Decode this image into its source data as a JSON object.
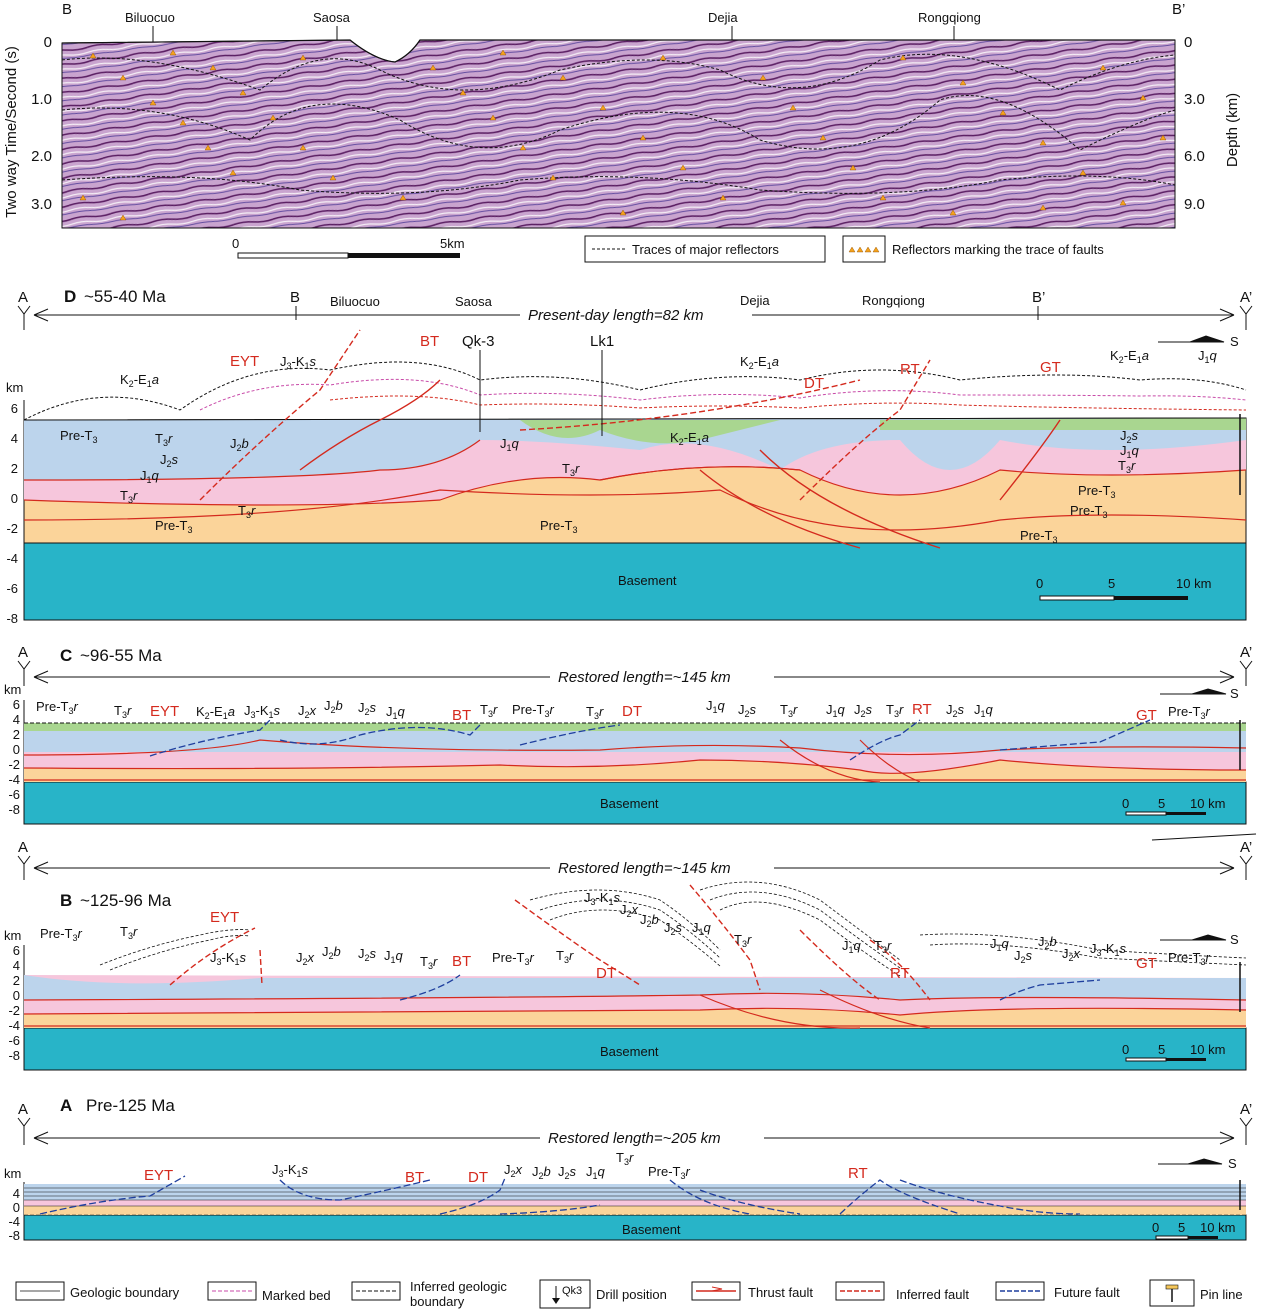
{
  "seismic": {
    "left_end": "B",
    "right_end": "B’",
    "towns": [
      "Biluocuo",
      "Saosa",
      "Dejia",
      "Rongqiong"
    ],
    "left_axis_title": "Two way Time/Second (s)",
    "right_axis_title": "Depth (km)",
    "left_ticks": [
      "0",
      "1.0",
      "2.0",
      "3.0"
    ],
    "right_ticks": [
      "0",
      "3.0",
      "6.0",
      "9.0"
    ],
    "scale_start": "0",
    "scale_end": "5km",
    "legend_major": "Traces of major reflectors",
    "legend_faults": "Reflectors marking the trace of faults"
  },
  "panelD": {
    "letter": "D",
    "age": "~55-40 Ma",
    "left_end": "A",
    "right_end": "A’",
    "length_label": "Present-day length=82 km",
    "b_marker": "B",
    "b2_marker": "B’",
    "towns": [
      "Biluocuo",
      "Saosa",
      "Dejia",
      "Rongqiong"
    ],
    "unit": "km",
    "ticks": [
      "6",
      "4",
      "2",
      "0",
      "-2",
      "-4",
      "-6",
      "-8"
    ],
    "faults": [
      "EYT",
      "BT",
      "DT",
      "RT",
      "GT"
    ],
    "wells": [
      "Qk-3",
      "Lk1"
    ],
    "basement": "Basement",
    "scale": [
      "0",
      "5",
      "10 km"
    ],
    "s_label": "S",
    "formation_labels": [
      {
        "base": "J",
        "sub": "3",
        "mid": "-K",
        "sub2": "1",
        "it": "s"
      },
      {
        "base": "K",
        "sub": "2",
        "mid": "-E",
        "sub2": "1",
        "it": "a"
      },
      {
        "base": "J",
        "sub": "2",
        "it": "x"
      },
      {
        "base": "J",
        "sub": "2",
        "it": "b"
      },
      {
        "base": "J",
        "sub": "2",
        "it": "s"
      },
      {
        "base": "J",
        "sub": "1",
        "it": "q"
      },
      {
        "base": "T",
        "sub": "3",
        "it": "r"
      },
      {
        "base": "Pre-T",
        "sub": "3"
      }
    ]
  },
  "panelC": {
    "letter": "C",
    "age": "~96-55 Ma",
    "left_end": "A",
    "right_end": "A’",
    "length_label": "Restored length=~145 km",
    "unit": "km",
    "ticks": [
      "6",
      "4",
      "2",
      "0",
      "-2",
      "-4",
      "-6",
      "-8"
    ],
    "faults": [
      "EYT",
      "BT",
      "DT",
      "RT",
      "GT"
    ],
    "basement": "Basement",
    "scale": [
      "0",
      "5",
      "10 km"
    ],
    "s_label": "S"
  },
  "panelB": {
    "letter": "B",
    "age": "~125-96 Ma",
    "left_end": "A",
    "right_end": "A’",
    "length_label": "Restored length=~145 km",
    "unit": "km",
    "ticks": [
      "6",
      "4",
      "2",
      "0",
      "-2",
      "-4",
      "-6",
      "-8"
    ],
    "faults": [
      "EYT",
      "BT",
      "DT",
      "RT",
      "GT"
    ],
    "basement": "Basement",
    "scale": [
      "0",
      "5",
      "10 km"
    ],
    "s_label": "S"
  },
  "panelA": {
    "letter": "A",
    "age": "Pre-125 Ma",
    "left_end": "A",
    "right_end": "A’",
    "length_label": "Restored length=~205 km",
    "unit": "km",
    "ticks": [
      "4",
      "0",
      "-4",
      "-8"
    ],
    "faults": [
      "EYT",
      "BT",
      "DT",
      "RT"
    ],
    "basement": "Basement",
    "scale": [
      "0",
      "5",
      "10 km"
    ],
    "s_label": "S"
  },
  "legend": {
    "geologic_boundary": "Geologic boundary",
    "marked_bed": "Marked bed",
    "inferred_boundary_1": "Inferred geologic",
    "inferred_boundary_2": "boundary",
    "drill_code": "Qk3",
    "drill_position": "Drill position",
    "thrust_fault": "Thrust fault",
    "inferred_fault": "Inferred fault",
    "future_fault": "Future fault",
    "pin_line": "Pin line"
  },
  "colors": {
    "basement": "#28b4c8",
    "pre_t3": "#fbd49a",
    "t3r": "#f6c6dc",
    "jurassic": "#bcd4ec",
    "k2e1a": "#a9d690",
    "fault_red": "#d42a1e",
    "future_blue": "#1f3f9e",
    "seismic_bg": "#c9a4cf"
  }
}
